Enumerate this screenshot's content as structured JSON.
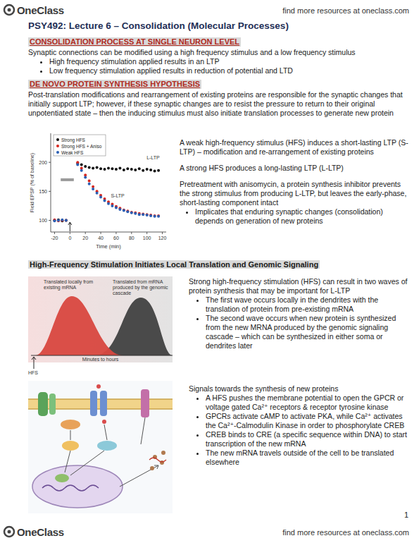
{
  "header": {
    "logo": "OneClass",
    "link": "find more resources at oneclass.com"
  },
  "title": "PSY492: Lecture 6 – Consolidation (Molecular Processes)",
  "sections": [
    {
      "heading": "CONSOLIDATION PROCESS AT SINGLE NEURON LEVEL",
      "paragraph": "Synaptic connections can be modified using a high frequency stimulus and a low frequency stimulus",
      "bullets": [
        "High frequency stimulation applied results in an LTP",
        "Low frequency stimulation applied results in reduction of potential and LTD"
      ]
    },
    {
      "heading": "DE NOVO PROTEIN SYNTHESIS HYPOTHESIS",
      "paragraph": "Post-translation modifications and rearrangement of existing proteins are responsible for the synaptic changes that initially support LTP; however, if these synaptic changes are to resist the pressure to return to their original unpotentiated state – then the inducing stimulus must also initiate translation processes to generate new protein",
      "side_text": [
        {
          "text": "A weak high-frequency stimulus (HFS) induces a short-lasting LTP (S-LTP) – modification and re-arrangement of existing proteins",
          "bullets": []
        },
        {
          "text": "A strong HFS produces a long-lasting LTP (L-LTP)",
          "bullets": []
        },
        {
          "text": "Pretreatment with anisomycin, a protein synthesis inhibitor prevents the strong stimulus from producing L-LTP, but leaves the early-phase, short-lasting component intact",
          "bullets": [
            "Implicates that enduring synaptic changes (consolidation) depends on generation of new proteins"
          ]
        }
      ]
    },
    {
      "heading": "High-Frequency Stimulation Initiates Local Translation and Genomic Signaling",
      "side_text": [
        {
          "text": "Strong high-frequency stimulation (HFS) can result in two waves of protein synthesis that may be important for L-LTP",
          "bullets": [
            "The first wave occurs locally in the dendrites with the translation of protein from pre-existing mRNA",
            "The second wave occurs when new protein is synthesized from the new MRNA produced by the genomic signaling cascade – which can be synthesized in either soma or dendrites later"
          ]
        },
        {
          "text": "Signals towards the synthesis of new proteins",
          "bullets": [
            "A HFS pushes the membrane potential to open the GPCR or voltage gated Ca²⁺ receptors & receptor tyrosine kinase",
            "GPCRs activate cAMP to activate PKA, while Ca²⁺ activates the Ca²⁺-Calmodulin Kinase in order to phosphorylate CREB",
            "CREB binds to CRE (a specific sequence within DNA) to start transcription of the new mRNA",
            "The new mRNA travels outside of the cell to be translated elsewhere"
          ]
        }
      ]
    }
  ],
  "chart_data": {
    "type": "line",
    "x_label": "Time (min)",
    "y_label": "Field EPSP (% of baseline)",
    "x": [
      -20,
      -15,
      -10,
      -5,
      10,
      15,
      20,
      25,
      30,
      35,
      40,
      45,
      50,
      55,
      60,
      65,
      70,
      75,
      80,
      85,
      90,
      95,
      100,
      105,
      110,
      115
    ],
    "series": [
      {
        "name": "Strong HFS",
        "color": "#111111",
        "marker": "circle",
        "line_style": "none",
        "values": [
          100,
          101,
          99,
          100,
          198,
          196,
          193,
          191,
          190,
          191,
          189,
          188,
          190,
          189,
          188,
          190,
          187,
          189,
          188,
          187,
          189,
          186,
          188,
          187,
          185,
          186
        ]
      },
      {
        "name": "Strong HFS + Aniso",
        "color": "#d7261e",
        "marker": "circle",
        "line_style": "none",
        "values": [
          101,
          99,
          100,
          100,
          200,
          190,
          178,
          168,
          158,
          150,
          143,
          137,
          132,
          128,
          124,
          121,
          118,
          116,
          114,
          113,
          112,
          111,
          110,
          109,
          108,
          108
        ]
      },
      {
        "name": "Weak HFS",
        "color": "#2b5fb4",
        "marker": "circle",
        "line_style": "none",
        "values": [
          99,
          100,
          101,
          100,
          196,
          186,
          174,
          163,
          154,
          147,
          140,
          134,
          129,
          125,
          122,
          119,
          117,
          115,
          113,
          112,
          110,
          110,
          109,
          108,
          107,
          107
        ]
      }
    ],
    "xlim": [
      -25,
      125
    ],
    "ylim": [
      80,
      250
    ],
    "xticks": [
      -20,
      0,
      20,
      40,
      60,
      80,
      100,
      120
    ],
    "yticks": [
      100,
      150,
      200
    ],
    "legend": "upper left",
    "annotations": [
      {
        "text": "L-LTP",
        "x": 108,
        "y": 205
      },
      {
        "text": "S-LTP",
        "x": 62,
        "y": 140
      }
    ],
    "shaded_bar": {
      "x0": -12,
      "x1": 5,
      "y": 170
    },
    "stimulus_x": 0
  },
  "waves_figure": {
    "labels": [
      "Translated locally from existing mRNA",
      "Translated from mRNA produced by the genomic cascade"
    ],
    "x_label": "Minutes to hours",
    "stimulus": "HFS"
  },
  "page_number": "1",
  "footer": {
    "logo": "OneClass",
    "link": "find more resources at oneclass.com"
  }
}
